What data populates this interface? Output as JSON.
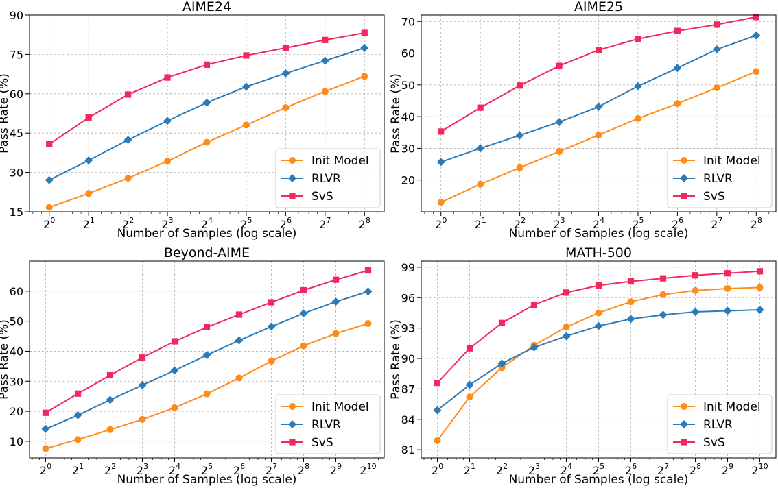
{
  "colors": {
    "Init Model": "#ff8c1a",
    "RLVR": "#2b7bb9",
    "SvS": "#f0285e"
  },
  "markers": {
    "Init Model": "circle",
    "RLVR": "diamond",
    "SvS": "square"
  },
  "chart_data": [
    {
      "type": "line",
      "title": "AIME24",
      "xlabel": "Number of Samples (log scale)",
      "ylabel": "Pass Rate (%)",
      "x_scale": "log2",
      "x": [
        1,
        2,
        4,
        8,
        16,
        32,
        64,
        128,
        256
      ],
      "x_tick_labels": [
        [
          "2",
          "0"
        ],
        [
          "2",
          "1"
        ],
        [
          "2",
          "2"
        ],
        [
          "2",
          "3"
        ],
        [
          "2",
          "4"
        ],
        [
          "2",
          "5"
        ],
        [
          "2",
          "6"
        ],
        [
          "2",
          "7"
        ],
        [
          "2",
          "8"
        ]
      ],
      "ylim": [
        15,
        90
      ],
      "yticks": [
        15,
        30,
        45,
        60,
        75,
        90
      ],
      "grid": true,
      "legend_position": "lower-right",
      "series": [
        {
          "name": "Init Model",
          "values": [
            16.7,
            22.0,
            27.8,
            34.3,
            41.5,
            48.1,
            54.7,
            60.9,
            66.7
          ]
        },
        {
          "name": "RLVR",
          "values": [
            27.1,
            34.6,
            42.4,
            49.7,
            56.6,
            62.7,
            67.8,
            72.6,
            77.5
          ]
        },
        {
          "name": "SvS",
          "values": [
            40.8,
            50.9,
            59.7,
            66.2,
            71.1,
            74.6,
            77.5,
            80.5,
            83.2
          ]
        }
      ]
    },
    {
      "type": "line",
      "title": "AIME25",
      "xlabel": "Number of Samples (log scale)",
      "ylabel": "Pass Rate (%)",
      "x_scale": "log2",
      "x": [
        1,
        2,
        4,
        8,
        16,
        32,
        64,
        128,
        256
      ],
      "x_tick_labels": [
        [
          "2",
          "0"
        ],
        [
          "2",
          "1"
        ],
        [
          "2",
          "2"
        ],
        [
          "2",
          "3"
        ],
        [
          "2",
          "4"
        ],
        [
          "2",
          "5"
        ],
        [
          "2",
          "6"
        ],
        [
          "2",
          "7"
        ],
        [
          "2",
          "8"
        ]
      ],
      "ylim": [
        10,
        72
      ],
      "yticks": [
        20,
        30,
        40,
        50,
        60,
        70
      ],
      "grid": true,
      "legend_position": "lower-right",
      "series": [
        {
          "name": "Init Model",
          "values": [
            13.0,
            18.7,
            23.9,
            29.0,
            34.2,
            39.4,
            44.1,
            49.1,
            54.2
          ]
        },
        {
          "name": "RLVR",
          "values": [
            25.7,
            30.0,
            34.1,
            38.3,
            43.1,
            49.6,
            55.3,
            61.2,
            65.6
          ]
        },
        {
          "name": "SvS",
          "values": [
            35.3,
            42.8,
            49.8,
            56.0,
            61.0,
            64.5,
            67.0,
            69.0,
            71.4
          ]
        }
      ]
    },
    {
      "type": "line",
      "title": "Beyond-AIME",
      "xlabel": "Number of Samples (log scale)",
      "ylabel": "Pass Rate (%)",
      "x_scale": "log2",
      "x": [
        1,
        2,
        4,
        8,
        16,
        32,
        64,
        128,
        256,
        512,
        1024
      ],
      "x_tick_labels": [
        [
          "2",
          "0"
        ],
        [
          "2",
          "1"
        ],
        [
          "2",
          "2"
        ],
        [
          "2",
          "3"
        ],
        [
          "2",
          "4"
        ],
        [
          "2",
          "5"
        ],
        [
          "2",
          "6"
        ],
        [
          "2",
          "7"
        ],
        [
          "2",
          "8"
        ],
        [
          "2",
          "9"
        ],
        [
          "2",
          "10"
        ]
      ],
      "ylim": [
        4.5,
        70
      ],
      "yticks": [
        10,
        20,
        30,
        40,
        50,
        60
      ],
      "grid": true,
      "legend_position": "lower-right",
      "series": [
        {
          "name": "Init Model",
          "values": [
            7.6,
            10.6,
            13.9,
            17.3,
            21.2,
            25.8,
            31.1,
            36.7,
            41.8,
            45.9,
            49.2
          ]
        },
        {
          "name": "RLVR",
          "values": [
            14.1,
            18.7,
            23.8,
            28.7,
            33.6,
            38.7,
            43.6,
            48.2,
            52.6,
            56.5,
            59.9
          ]
        },
        {
          "name": "SvS",
          "values": [
            19.5,
            25.9,
            32.0,
            37.9,
            43.3,
            48.0,
            52.2,
            56.3,
            60.3,
            63.8,
            66.9
          ]
        }
      ]
    },
    {
      "type": "line",
      "title": "MATH-500",
      "xlabel": "Number of Samples (log scale)",
      "ylabel": "Pass Rate (%)",
      "x_scale": "log2",
      "x": [
        1,
        2,
        4,
        8,
        16,
        32,
        64,
        128,
        256,
        512,
        1024
      ],
      "x_tick_labels": [
        [
          "2",
          "0"
        ],
        [
          "2",
          "1"
        ],
        [
          "2",
          "2"
        ],
        [
          "2",
          "3"
        ],
        [
          "2",
          "4"
        ],
        [
          "2",
          "5"
        ],
        [
          "2",
          "6"
        ],
        [
          "2",
          "7"
        ],
        [
          "2",
          "8"
        ],
        [
          "2",
          "9"
        ],
        [
          "2",
          "10"
        ]
      ],
      "ylim": [
        80.2,
        99.6
      ],
      "yticks": [
        81,
        84,
        87,
        90,
        93,
        96,
        99
      ],
      "grid": true,
      "legend_position": "lower-right",
      "series": [
        {
          "name": "Init Model",
          "values": [
            81.9,
            86.2,
            89.1,
            91.3,
            93.1,
            94.5,
            95.6,
            96.3,
            96.7,
            96.9,
            97.0
          ]
        },
        {
          "name": "RLVR",
          "values": [
            84.9,
            87.4,
            89.5,
            91.1,
            92.2,
            93.2,
            93.9,
            94.3,
            94.6,
            94.7,
            94.8
          ]
        },
        {
          "name": "SvS",
          "values": [
            87.6,
            91.0,
            93.5,
            95.3,
            96.5,
            97.2,
            97.6,
            97.9,
            98.2,
            98.4,
            98.6
          ]
        }
      ]
    }
  ]
}
